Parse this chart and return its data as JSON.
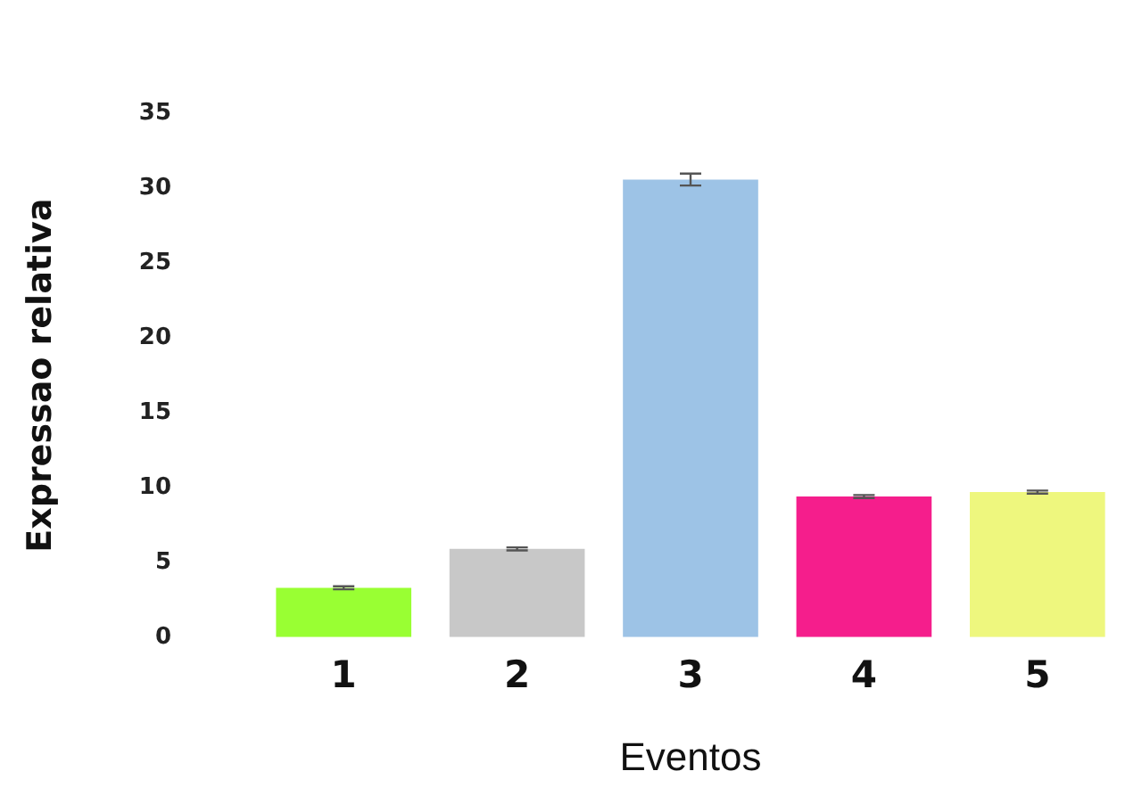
{
  "chart_data": {
    "type": "bar",
    "xlabel": "Eventos",
    "ylabel": "Expressao relativa",
    "categories": [
      "1",
      "2",
      "3",
      "4",
      "5"
    ],
    "values": [
      3.3,
      5.9,
      30.6,
      9.4,
      9.7
    ],
    "colors": [
      "#99ff33",
      "#c8c8c8",
      "#9dc3e6",
      "#f51e8c",
      "#eef77e"
    ],
    "errors": [
      0.1,
      0.1,
      0.4,
      0.1,
      0.1
    ],
    "ylim": [
      0,
      35
    ],
    "yticks": [
      0,
      5,
      10,
      15,
      20,
      25,
      30,
      35
    ],
    "grid": false,
    "legend": false
  }
}
